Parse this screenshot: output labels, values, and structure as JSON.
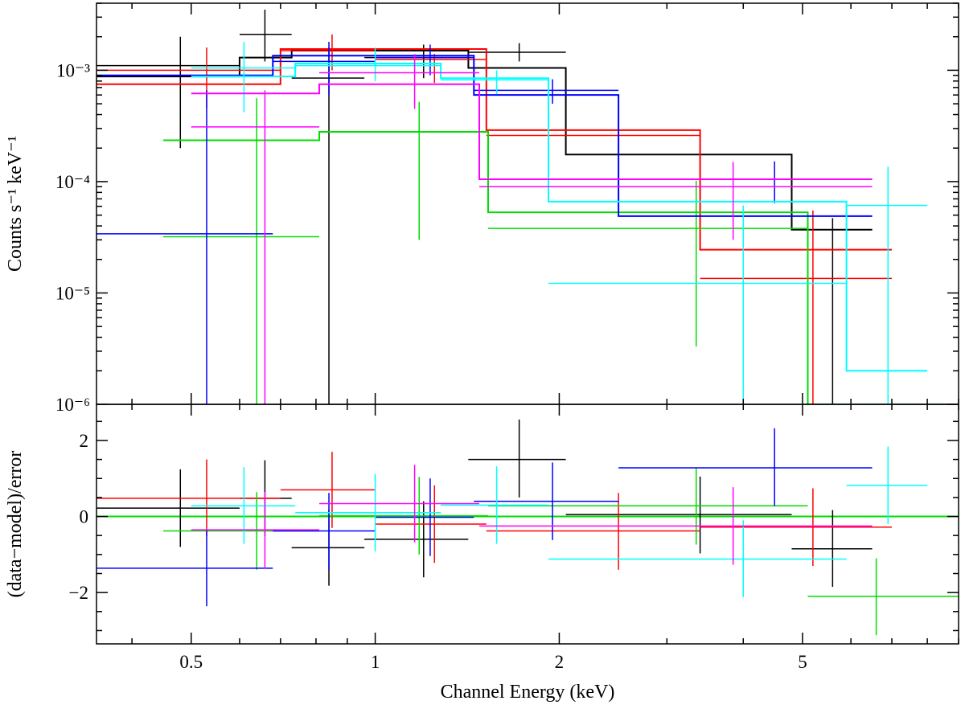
{
  "chart_data": [
    {
      "type": "scatter",
      "panel": "spectrum",
      "title": "",
      "xlabel": "",
      "ylabel": "Counts s⁻¹ keV⁻¹",
      "xscale": "log",
      "yscale": "log",
      "xlim": [
        0.35,
        9.0
      ],
      "ylim": [
        1e-06,
        0.004
      ],
      "y_ticks": [
        {
          "value": 0.001,
          "label": "10⁻³"
        },
        {
          "value": 0.0001,
          "label": "10⁻⁴"
        },
        {
          "value": 1e-05,
          "label": "10⁻⁵"
        },
        {
          "value": 1e-06,
          "label": "10⁻⁶"
        }
      ],
      "series": [
        {
          "color": "#000000",
          "points": [
            {
              "x": 0.48,
              "xlo": 0.35,
              "xhi": 0.6,
              "y": 0.0011,
              "ylo": 0.0002,
              "yhi": 0.002
            },
            {
              "x": 0.66,
              "xlo": 0.6,
              "xhi": 0.73,
              "y": 0.0021,
              "ylo": 0.0012,
              "yhi": 0.0035
            },
            {
              "x": 0.84,
              "xlo": 0.73,
              "xhi": 0.96,
              "y": 0.00085,
              "ylo": 1e-06,
              "yhi": 0.0016
            },
            {
              "x": 1.2,
              "xlo": 0.96,
              "xhi": 1.42,
              "y": 0.0013,
              "ylo": 0.00085,
              "yhi": 0.0017
            },
            {
              "x": 1.72,
              "xlo": 1.42,
              "xhi": 2.05,
              "y": 0.00145,
              "ylo": 0.0012,
              "yhi": 0.00175
            },
            {
              "x": 3.4,
              "xlo": 2.05,
              "xhi": 4.8,
              "y": 0.000175,
              "ylo": 0.000175,
              "yhi": 0.000175
            },
            {
              "x": 5.6,
              "xlo": 4.8,
              "xhi": 6.5,
              "y": 3.7e-05,
              "ylo": 1e-06,
              "yhi": 4.7e-05
            }
          ],
          "model": [
            {
              "x0": 0.35,
              "x1": 0.6,
              "y": 0.00088
            },
            {
              "x0": 0.6,
              "x1": 0.73,
              "y": 0.0013
            },
            {
              "x0": 0.73,
              "x1": 1.42,
              "y": 0.0015
            },
            {
              "x0": 1.42,
              "x1": 2.05,
              "y": 0.00105
            },
            {
              "x0": 2.05,
              "x1": 4.8,
              "y": 0.000175
            },
            {
              "x0": 4.8,
              "x1": 6.5,
              "y": 3.7e-05
            }
          ]
        },
        {
          "color": "#ff0000",
          "points": [
            {
              "x": 0.53,
              "xlo": 0.35,
              "xhi": 0.7,
              "y": 0.001,
              "ylo": 0.00046,
              "yhi": 0.0016
            },
            {
              "x": 0.85,
              "xlo": 0.7,
              "xhi": 1.0,
              "y": 0.0015,
              "ylo": 0.001,
              "yhi": 0.0021
            },
            {
              "x": 1.25,
              "xlo": 1.0,
              "xhi": 1.52,
              "y": 0.00125,
              "ylo": 0.00077,
              "yhi": 0.0014
            },
            {
              "x": 2.5,
              "xlo": 1.52,
              "xhi": 3.4,
              "y": 0.00026,
              "ylo": 0.00017,
              "yhi": 0.00035
            },
            {
              "x": 5.2,
              "xlo": 3.4,
              "xhi": 7.0,
              "y": 1.35e-05,
              "ylo": 1e-06,
              "yhi": 5.5e-05
            }
          ],
          "model": [
            {
              "x0": 0.35,
              "x1": 0.7,
              "y": 0.00075
            },
            {
              "x0": 0.7,
              "x1": 1.52,
              "y": 0.00155
            },
            {
              "x0": 1.52,
              "x1": 3.4,
              "y": 0.00029
            },
            {
              "x0": 3.4,
              "x1": 7.0,
              "y": 2.45e-05
            }
          ]
        },
        {
          "color": "#00dd00",
          "points": [
            {
              "x": 0.64,
              "xlo": 0.45,
              "xhi": 0.81,
              "y": 3.2e-05,
              "ylo": 1e-06,
              "yhi": 0.00056
            },
            {
              "x": 1.18,
              "xlo": 0.81,
              "xhi": 1.53,
              "y": 0.00028,
              "ylo": 3e-05,
              "yhi": 0.00052
            },
            {
              "x": 3.35,
              "xlo": 1.53,
              "xhi": 5.1,
              "y": 3.8e-05,
              "ylo": 3.3e-06,
              "yhi": 0.000102
            },
            {
              "x": 6.6,
              "xlo": 5.1,
              "xhi": 9.0,
              "y": 1e-06,
              "ylo": 1e-06,
              "yhi": 1e-06
            }
          ],
          "model": [
            {
              "x0": 0.45,
              "x1": 0.81,
              "y": 0.000235
            },
            {
              "x0": 0.81,
              "x1": 1.53,
              "y": 0.00028
            },
            {
              "x0": 1.53,
              "x1": 5.1,
              "y": 5.3e-05
            },
            {
              "x0": 5.1,
              "x1": 9.0,
              "y": 1e-06
            }
          ]
        },
        {
          "color": "#0000ff",
          "points": [
            {
              "x": 0.53,
              "xlo": 0.35,
              "xhi": 0.68,
              "y": 3.4e-05,
              "ylo": 1e-06,
              "yhi": 0.00066
            },
            {
              "x": 0.84,
              "xlo": 0.68,
              "xhi": 1.0,
              "y": 0.0012,
              "ylo": 0.0006,
              "yhi": 0.0018
            },
            {
              "x": 1.23,
              "xlo": 1.0,
              "xhi": 1.45,
              "y": 0.0013,
              "ylo": 0.0009,
              "yhi": 0.0017
            },
            {
              "x": 1.95,
              "xlo": 1.45,
              "xhi": 2.5,
              "y": 0.00066,
              "ylo": 0.0005,
              "yhi": 0.00083
            },
            {
              "x": 4.5,
              "xlo": 2.5,
              "xhi": 6.5,
              "y": 0.000105,
              "ylo": 6.4e-05,
              "yhi": 0.000152
            }
          ],
          "model": [
            {
              "x0": 0.35,
              "x1": 0.68,
              "y": 0.0009
            },
            {
              "x0": 0.68,
              "x1": 1.45,
              "y": 0.00135
            },
            {
              "x0": 1.45,
              "x1": 2.5,
              "y": 0.0006
            },
            {
              "x0": 2.5,
              "x1": 6.5,
              "y": 4.9e-05
            }
          ]
        },
        {
          "color": "#00ffff",
          "points": [
            {
              "x": 0.61,
              "xlo": 0.5,
              "xhi": 0.74,
              "y": 0.00105,
              "ylo": 0.00042,
              "yhi": 0.0018
            },
            {
              "x": 1.0,
              "xlo": 0.74,
              "xhi": 1.28,
              "y": 0.0011,
              "ylo": 0.0008,
              "yhi": 0.0016
            },
            {
              "x": 1.58,
              "xlo": 1.28,
              "xhi": 1.92,
              "y": 0.00082,
              "ylo": 0.00061,
              "yhi": 0.001
            },
            {
              "x": 4.0,
              "xlo": 1.92,
              "xhi": 5.9,
              "y": 1.22e-05,
              "ylo": 1e-06,
              "yhi": 6.1e-05
            },
            {
              "x": 6.9,
              "xlo": 5.9,
              "xhi": 8.0,
              "y": 6.1e-05,
              "ylo": 1e-06,
              "yhi": 0.000136
            }
          ],
          "model": [
            {
              "x0": 0.5,
              "x1": 0.74,
              "y": 0.00088
            },
            {
              "x0": 0.74,
              "x1": 1.28,
              "y": 0.00115
            },
            {
              "x0": 1.28,
              "x1": 1.92,
              "y": 0.00085
            },
            {
              "x0": 1.92,
              "x1": 5.9,
              "y": 6.6e-05
            },
            {
              "x0": 5.9,
              "x1": 8.0,
              "y": 2e-06
            }
          ]
        },
        {
          "color": "#ff00ff",
          "points": [
            {
              "x": 0.66,
              "xlo": 0.5,
              "xhi": 0.81,
              "y": 0.00031,
              "ylo": 1e-06,
              "yhi": 0.00066
            },
            {
              "x": 1.16,
              "xlo": 0.81,
              "xhi": 1.48,
              "y": 0.00095,
              "ylo": 0.00045,
              "yhi": 0.0014
            },
            {
              "x": 3.85,
              "xlo": 1.48,
              "xhi": 6.5,
              "y": 9e-05,
              "ylo": 3e-05,
              "yhi": 0.00015
            }
          ],
          "model": [
            {
              "x0": 0.5,
              "x1": 0.81,
              "y": 0.00062
            },
            {
              "x0": 0.81,
              "x1": 1.48,
              "y": 0.00075
            },
            {
              "x0": 1.48,
              "x1": 6.5,
              "y": 0.000105
            }
          ]
        }
      ]
    },
    {
      "type": "scatter",
      "panel": "residuals",
      "title": "",
      "xlabel": "Channel Energy (keV)",
      "ylabel": "(data−model)/error",
      "xscale": "log",
      "yscale": "linear",
      "xlim": [
        0.35,
        9.0
      ],
      "ylim": [
        -3.35,
        2.95
      ],
      "x_ticks": [
        {
          "value": 0.5,
          "label": "0.5"
        },
        {
          "value": 1,
          "label": "1"
        },
        {
          "value": 2,
          "label": "2"
        },
        {
          "value": 5,
          "label": "5"
        }
      ],
      "y_ticks": [
        {
          "value": 2,
          "label": "2"
        },
        {
          "value": 0,
          "label": "0"
        },
        {
          "value": -2,
          "label": "−2"
        }
      ],
      "zero_line_color": "#00dd00",
      "series": [
        {
          "color": "#000000",
          "points": [
            {
              "x": 0.48,
              "xlo": 0.35,
              "xhi": 0.6,
              "y": 0.22,
              "ylo": -0.8,
              "yhi": 1.24
            },
            {
              "x": 0.66,
              "xlo": 0.6,
              "xhi": 0.73,
              "y": 0.48,
              "ylo": -0.52,
              "yhi": 1.48
            },
            {
              "x": 0.84,
              "xlo": 0.73,
              "xhi": 0.96,
              "y": -0.82,
              "ylo": -1.82,
              "yhi": 0.18
            },
            {
              "x": 1.2,
              "xlo": 0.96,
              "xhi": 1.42,
              "y": -0.6,
              "ylo": -1.6,
              "yhi": 0.4
            },
            {
              "x": 1.72,
              "xlo": 1.42,
              "xhi": 2.05,
              "y": 1.5,
              "ylo": 0.5,
              "yhi": 2.55
            },
            {
              "x": 3.4,
              "xlo": 2.05,
              "xhi": 4.8,
              "y": 0.05,
              "ylo": -0.97,
              "yhi": 1.05
            },
            {
              "x": 5.6,
              "xlo": 4.8,
              "xhi": 6.5,
              "y": -0.85,
              "ylo": -1.85,
              "yhi": 0.17
            }
          ]
        },
        {
          "color": "#ff0000",
          "points": [
            {
              "x": 0.53,
              "xlo": 0.35,
              "xhi": 0.7,
              "y": 0.48,
              "ylo": -0.52,
              "yhi": 1.5
            },
            {
              "x": 0.85,
              "xlo": 0.7,
              "xhi": 1.0,
              "y": 0.7,
              "ylo": -0.3,
              "yhi": 1.7
            },
            {
              "x": 1.25,
              "xlo": 1.0,
              "xhi": 1.52,
              "y": -0.2,
              "ylo": -1.22,
              "yhi": 0.82
            },
            {
              "x": 2.5,
              "xlo": 1.52,
              "xhi": 3.4,
              "y": -0.38,
              "ylo": -1.4,
              "yhi": 0.62
            },
            {
              "x": 5.2,
              "xlo": 3.4,
              "xhi": 7.0,
              "y": -0.28,
              "ylo": -1.3,
              "yhi": 0.74
            }
          ]
        },
        {
          "color": "#00dd00",
          "points": [
            {
              "x": 0.64,
              "xlo": 0.45,
              "xhi": 0.81,
              "y": -0.38,
              "ylo": -1.4,
              "yhi": 0.64
            },
            {
              "x": 1.18,
              "xlo": 0.81,
              "xhi": 1.53,
              "y": 0.02,
              "ylo": -1.0,
              "yhi": 1.04
            },
            {
              "x": 3.35,
              "xlo": 1.53,
              "xhi": 5.1,
              "y": 0.28,
              "ylo": -0.74,
              "yhi": 1.28
            },
            {
              "x": 6.6,
              "xlo": 5.1,
              "xhi": 9.0,
              "y": -2.1,
              "ylo": -3.12,
              "yhi": -1.1
            }
          ]
        },
        {
          "color": "#0000ff",
          "points": [
            {
              "x": 0.53,
              "xlo": 0.35,
              "xhi": 0.68,
              "y": -1.36,
              "ylo": -2.36,
              "yhi": -0.34
            },
            {
              "x": 0.84,
              "xlo": 0.68,
              "xhi": 1.0,
              "y": -0.38,
              "ylo": -1.4,
              "yhi": 0.62
            },
            {
              "x": 1.23,
              "xlo": 1.0,
              "xhi": 1.45,
              "y": -0.02,
              "ylo": -1.04,
              "yhi": 1.0
            },
            {
              "x": 1.95,
              "xlo": 1.45,
              "xhi": 2.5,
              "y": 0.4,
              "ylo": -0.62,
              "yhi": 1.42
            },
            {
              "x": 4.5,
              "xlo": 2.5,
              "xhi": 6.5,
              "y": 1.28,
              "ylo": 0.28,
              "yhi": 2.32
            }
          ]
        },
        {
          "color": "#00ffff",
          "points": [
            {
              "x": 0.61,
              "xlo": 0.5,
              "xhi": 0.74,
              "y": 0.28,
              "ylo": -0.72,
              "yhi": 1.3
            },
            {
              "x": 1.0,
              "xlo": 0.74,
              "xhi": 1.28,
              "y": 0.1,
              "ylo": -0.92,
              "yhi": 1.12
            },
            {
              "x": 1.58,
              "xlo": 1.28,
              "xhi": 1.92,
              "y": 0.3,
              "ylo": -0.72,
              "yhi": 1.32
            },
            {
              "x": 4.0,
              "xlo": 1.92,
              "xhi": 5.9,
              "y": -1.12,
              "ylo": -2.12,
              "yhi": -0.1
            },
            {
              "x": 6.9,
              "xlo": 5.9,
              "xhi": 8.0,
              "y": 0.82,
              "ylo": -0.2,
              "yhi": 1.84
            }
          ]
        },
        {
          "color": "#ff00ff",
          "points": [
            {
              "x": 0.66,
              "xlo": 0.5,
              "xhi": 0.81,
              "y": -0.35,
              "ylo": -1.37,
              "yhi": 0.65
            },
            {
              "x": 1.16,
              "xlo": 0.81,
              "xhi": 1.48,
              "y": 0.34,
              "ylo": -0.68,
              "yhi": 1.36
            },
            {
              "x": 3.85,
              "xlo": 1.48,
              "xhi": 6.5,
              "y": -0.25,
              "ylo": -1.27,
              "yhi": 0.77
            }
          ]
        }
      ]
    }
  ]
}
